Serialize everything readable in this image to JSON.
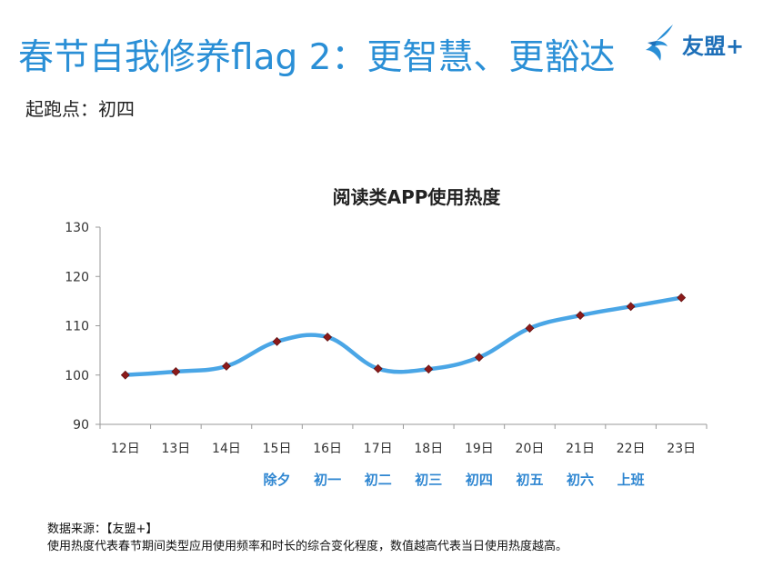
{
  "page": {
    "title": "春节自我修养flag 2：更智慧、更豁达",
    "subtitle": "起跑点：初四",
    "logo_text": "友盟+",
    "source_line": "数据来源：【友盟+】",
    "note_line": "使用热度代表春节期间类型应用使用频率和时长的综合变化程度，数值越高代表当日使用热度越高。"
  },
  "colors": {
    "title": "#2a8fd6",
    "line": "#4aa6e6",
    "marker": "#8b1a1a",
    "festival_label": "#2e86d1"
  },
  "chart_data": {
    "type": "line",
    "title": "阅读类APP使用热度",
    "categories": [
      "12日",
      "13日",
      "14日",
      "15日",
      "16日",
      "17日",
      "18日",
      "19日",
      "20日",
      "21日",
      "22日",
      "23日"
    ],
    "festival_labels": [
      "",
      "",
      "",
      "除夕",
      "初一",
      "初二",
      "初三",
      "初四",
      "初五",
      "初六",
      "上班",
      ""
    ],
    "series": [
      {
        "values": [
          100,
          100.7,
          101.8,
          106.8,
          107.7,
          101.3,
          101.2,
          103.6,
          109.5,
          112.1,
          113.9,
          115.7
        ]
      }
    ],
    "ylim": [
      90,
      130
    ],
    "yticks": [
      90,
      100,
      110,
      120,
      130
    ],
    "xlabel": "",
    "ylabel": "",
    "grid": false,
    "legend": "none"
  }
}
